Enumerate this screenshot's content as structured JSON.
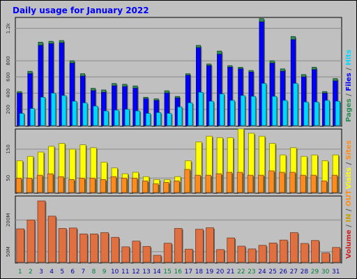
{
  "title": "Daily usage for January 2022",
  "chart_data": {
    "type": "bar",
    "categories": [
      "1",
      "2",
      "3",
      "4",
      "5",
      "6",
      "7",
      "8",
      "9",
      "10",
      "11",
      "12",
      "13",
      "14",
      "15",
      "16",
      "17",
      "18",
      "19",
      "20",
      "21",
      "22",
      "23",
      "24",
      "25",
      "26",
      "27",
      "28",
      "29",
      "30",
      "31"
    ],
    "weekend_days": [
      "1",
      "2",
      "8",
      "9",
      "15",
      "16",
      "22",
      "23",
      "29",
      "30"
    ],
    "colors": {
      "pages": "#2e8b57",
      "files": "#0000ff",
      "hits": "#00d8ff",
      "visits": "#ffff00",
      "sites": "#ff8c1a",
      "volume": "#e07040",
      "in": "#ff6020",
      "out": "#ffa060",
      "weekday_label": "#0000aa",
      "weekend_label": "#008040",
      "title": "#0000ff"
    },
    "panels": [
      {
        "id": "pages-files-hits",
        "ylim": [
          0,
          1300
        ],
        "yticks": [
          "200",
          "400",
          "600",
          "800",
          "1.2k"
        ],
        "ytick_values": [
          200,
          400,
          600,
          800,
          1200
        ],
        "series": [
          {
            "key": "pages",
            "values": [
              420,
              670,
              1030,
              1040,
              1050,
              800,
              640,
              460,
              440,
              520,
              510,
              490,
              350,
              330,
              430,
              360,
              640,
              990,
              760,
              920,
              740,
              720,
              680,
              1320,
              800,
              700,
              1100,
              630,
              720,
              420,
              580
            ]
          },
          {
            "key": "files",
            "values": [
              400,
              640,
              990,
              1010,
              1020,
              770,
              610,
              430,
              410,
              490,
              480,
              460,
              330,
              310,
              400,
              340,
              620,
              960,
              740,
              880,
              720,
              700,
              660,
              1280,
              770,
              670,
              1060,
              600,
              690,
              400,
              550
            ]
          },
          {
            "key": "hits",
            "values": [
              150,
              210,
              350,
              400,
              370,
              300,
              280,
              240,
              180,
              190,
              200,
              180,
              150,
              160,
              150,
              230,
              280,
              410,
              300,
              390,
              310,
              370,
              360,
              520,
              360,
              310,
              520,
              290,
              290,
              310,
              300
            ]
          }
        ],
        "legend": [
          {
            "text": "Pages",
            "key": "pages"
          },
          {
            "text": " / ",
            "key": "sep"
          },
          {
            "text": "Files",
            "key": "files"
          },
          {
            "text": " / ",
            "key": "sep"
          },
          {
            "text": "Hits",
            "key": "hits"
          }
        ]
      },
      {
        "id": "visits-sites",
        "ylim": [
          0,
          210
        ],
        "yticks": [
          "50",
          "150"
        ],
        "ytick_values": [
          50,
          150
        ],
        "series": [
          {
            "key": "visits",
            "values": [
              110,
              125,
              140,
              160,
              170,
              150,
              165,
              155,
              105,
              85,
              65,
              70,
              55,
              45,
              45,
              55,
              110,
              175,
              195,
              190,
              190,
              220,
              205,
              195,
              170,
              130,
              155,
              125,
              130,
              110,
              130
            ]
          },
          {
            "key": "sites",
            "values": [
              50,
              50,
              60,
              65,
              55,
              45,
              50,
              50,
              45,
              55,
              50,
              50,
              40,
              30,
              35,
              40,
              80,
              60,
              60,
              65,
              70,
              70,
              60,
              60,
              75,
              70,
              70,
              60,
              60,
              40,
              60
            ]
          }
        ],
        "legend": [
          {
            "text": "Visits",
            "key": "visits"
          },
          {
            "text": " / ",
            "key": "sep"
          },
          {
            "text": "Sites",
            "key": "sites"
          }
        ]
      },
      {
        "id": "volume",
        "ylim": [
          0,
          300
        ],
        "yticks": [
          "50M",
          "200M"
        ],
        "ytick_values": [
          50,
          200
        ],
        "series": [
          {
            "key": "volume",
            "values": [
              158,
              200,
              290,
              218,
              160,
              162,
              134,
              134,
              140,
              118,
              73,
              100,
              75,
              33,
              90,
              160,
              62,
              156,
              163,
              60,
              115,
              76,
              63,
              80,
              91,
              105,
              140,
              89,
              103,
              44,
              70
            ]
          }
        ],
        "legend": [
          {
            "text": "Volume",
            "key": "volume"
          },
          {
            "text": " / ",
            "key": "sep"
          },
          {
            "text": "IN",
            "key": "in"
          },
          {
            "text": " / ",
            "key": "sep"
          },
          {
            "text": "OUT",
            "key": "out"
          }
        ]
      }
    ]
  }
}
